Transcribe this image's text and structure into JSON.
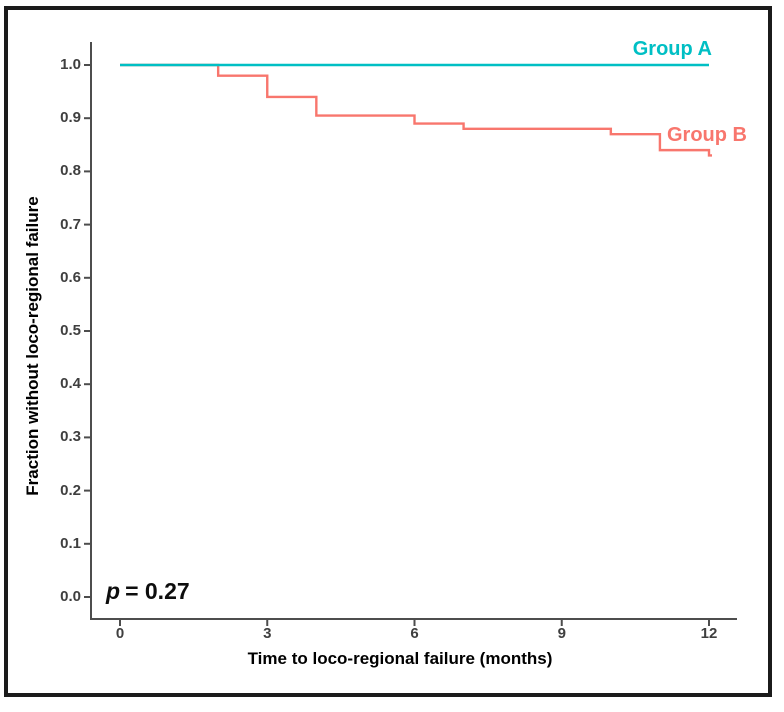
{
  "figure": {
    "frame_color": "#1b1b1b",
    "background": "#ffffff",
    "axis_line_color": "#4d4d4d",
    "tick_text_color": "#3f3f3f"
  },
  "chart_data": {
    "type": "line",
    "subtype": "kaplan-meier-step",
    "title": "",
    "xlabel": "Time to loco-regional failure (months)",
    "ylabel": "Fraction without loco-regional failure",
    "xlim": [
      0,
      12
    ],
    "ylim": [
      0.0,
      1.0
    ],
    "x_ticks": [
      0,
      3,
      6,
      9,
      12
    ],
    "y_ticks": [
      1.0,
      0.9,
      0.8,
      0.7,
      0.6,
      0.5,
      0.4,
      0.3,
      0.2,
      0.1,
      0.0
    ],
    "grid": false,
    "legend_position": "labels-at-line-end",
    "annotation": {
      "symbol": "p",
      "text": "= 0.27",
      "full": "p = 0.27"
    },
    "series": [
      {
        "name": "Group A",
        "color": "#00BFC4",
        "step_points": [
          [
            0,
            1.0
          ],
          [
            12,
            1.0
          ]
        ],
        "end_stub": false
      },
      {
        "name": "Group B",
        "color": "#F8766D",
        "step_points": [
          [
            0,
            1.0
          ],
          [
            2,
            0.98
          ],
          [
            3,
            0.94
          ],
          [
            4,
            0.905
          ],
          [
            6,
            0.89
          ],
          [
            7,
            0.88
          ],
          [
            10,
            0.87
          ],
          [
            11,
            0.84
          ],
          [
            12,
            0.83
          ]
        ],
        "end_stub": true
      }
    ]
  }
}
